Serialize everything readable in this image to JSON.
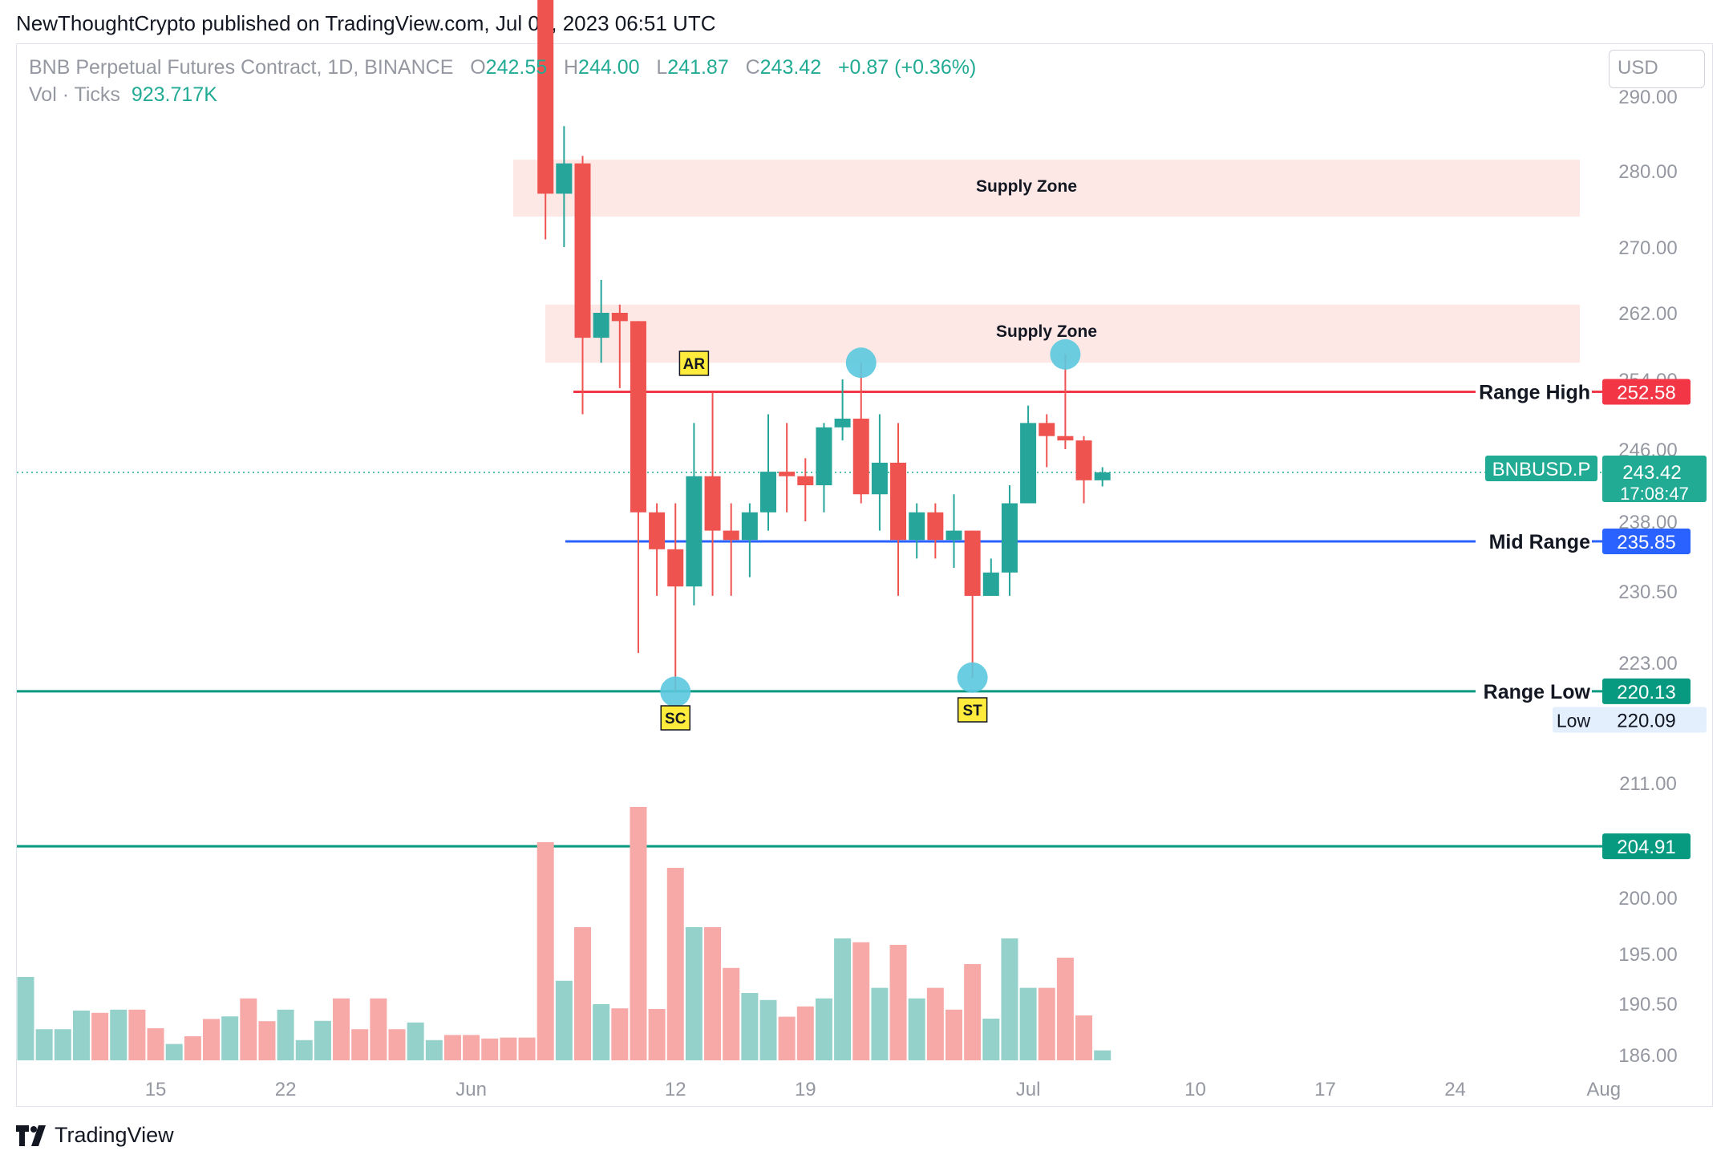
{
  "header": {
    "text": "NewThoughtCrypto published on TradingView.com, Jul 05, 2023 06:51 UTC"
  },
  "legend": {
    "symbol": "BNB Perpetual Futures Contract, 1D, BINANCE",
    "o_label": "O",
    "o_value": "242.55",
    "h_label": "H",
    "h_value": "244.00",
    "l_label": "L",
    "l_value": "241.87",
    "c_label": "C",
    "c_value": "243.42",
    "change": "+0.87 (+0.36%)",
    "vol_label": "Vol · Ticks",
    "vol_value": "923.717K"
  },
  "currency": "USD",
  "footer": {
    "brand": "TradingView"
  },
  "colors": {
    "up": "#26a69a",
    "down": "#ef5350",
    "range_high": "#f23645",
    "mid_range": "#2962ff",
    "range_low": "#089981",
    "zone": "#fde8e6",
    "marker": "#5bc8de",
    "label_bg": "#ffeb3b"
  },
  "chart_data": {
    "type": "candlestick",
    "symbol_tag": "BNBUSD.P",
    "last_price": "243.42",
    "countdown": "17:08:47",
    "y_axis": {
      "ticks": [
        "290.00",
        "280.00",
        "270.00",
        "262.00",
        "254.00",
        "246.00",
        "238.00",
        "230.50",
        "223.00",
        "211.00",
        "200.00",
        "195.00",
        "190.50",
        "186.00"
      ]
    },
    "x_axis": {
      "ticks": [
        "15",
        "22",
        "Jun",
        "12",
        "19",
        "Jul",
        "10",
        "17",
        "24",
        "Aug"
      ]
    },
    "candles": [
      {
        "date": "2023-06-05",
        "o": 308.0,
        "h": 312.0,
        "l": 271.0,
        "c": 277.0
      },
      {
        "date": "2023-06-06",
        "o": 277.0,
        "h": 286.0,
        "l": 270.0,
        "c": 281.0
      },
      {
        "date": "2023-06-07",
        "o": 281.0,
        "h": 282.0,
        "l": 250.0,
        "c": 259.0
      },
      {
        "date": "2023-06-08",
        "o": 259.0,
        "h": 266.0,
        "l": 256.0,
        "c": 262.0
      },
      {
        "date": "2023-06-09",
        "o": 262.0,
        "h": 263.0,
        "l": 253.0,
        "c": 261.0
      },
      {
        "date": "2023-06-10",
        "o": 261.0,
        "h": 261.0,
        "l": 224.0,
        "c": 239.0
      },
      {
        "date": "2023-06-11",
        "o": 239.0,
        "h": 240.0,
        "l": 230.0,
        "c": 235.0
      },
      {
        "date": "2023-06-12",
        "o": 235.0,
        "h": 240.0,
        "l": 220.09,
        "c": 231.0
      },
      {
        "date": "2023-06-13",
        "o": 231.0,
        "h": 249.0,
        "l": 229.0,
        "c": 243.0
      },
      {
        "date": "2023-06-14",
        "o": 243.0,
        "h": 252.5,
        "l": 230.0,
        "c": 237.0
      },
      {
        "date": "2023-06-15",
        "o": 237.0,
        "h": 240.0,
        "l": 230.0,
        "c": 236.0
      },
      {
        "date": "2023-06-16",
        "o": 236.0,
        "h": 240.0,
        "l": 232.0,
        "c": 239.0
      },
      {
        "date": "2023-06-17",
        "o": 239.0,
        "h": 250.0,
        "l": 237.0,
        "c": 243.5
      },
      {
        "date": "2023-06-18",
        "o": 243.5,
        "h": 249.0,
        "l": 239.0,
        "c": 243.0
      },
      {
        "date": "2023-06-19",
        "o": 243.0,
        "h": 245.0,
        "l": 238.0,
        "c": 242.0
      },
      {
        "date": "2023-06-20",
        "o": 242.0,
        "h": 249.0,
        "l": 239.0,
        "c": 248.5
      },
      {
        "date": "2023-06-21",
        "o": 248.5,
        "h": 254.0,
        "l": 247.0,
        "c": 249.5
      },
      {
        "date": "2023-06-22",
        "o": 249.5,
        "h": 256.0,
        "l": 240.0,
        "c": 241.0
      },
      {
        "date": "2023-06-23",
        "o": 241.0,
        "h": 250.0,
        "l": 237.0,
        "c": 244.5
      },
      {
        "date": "2023-06-24",
        "o": 244.5,
        "h": 249.0,
        "l": 230.0,
        "c": 236.0
      },
      {
        "date": "2023-06-25",
        "o": 236.0,
        "h": 240.0,
        "l": 234.0,
        "c": 239.0
      },
      {
        "date": "2023-06-26",
        "o": 239.0,
        "h": 240.0,
        "l": 234.0,
        "c": 236.0
      },
      {
        "date": "2023-06-27",
        "o": 236.0,
        "h": 241.0,
        "l": 233.0,
        "c": 237.0
      },
      {
        "date": "2023-06-28",
        "o": 237.0,
        "h": 237.0,
        "l": 221.5,
        "c": 230.0
      },
      {
        "date": "2023-06-29",
        "o": 230.0,
        "h": 234.0,
        "l": 230.0,
        "c": 232.5
      },
      {
        "date": "2023-06-30",
        "o": 232.5,
        "h": 242.0,
        "l": 230.0,
        "c": 240.0
      },
      {
        "date": "2023-07-01",
        "o": 240.0,
        "h": 251.0,
        "l": 240.0,
        "c": 249.0
      },
      {
        "date": "2023-07-02",
        "o": 249.0,
        "h": 250.0,
        "l": 244.0,
        "c": 247.5
      },
      {
        "date": "2023-07-03",
        "o": 247.5,
        "h": 257.0,
        "l": 246.0,
        "c": 247.0
      },
      {
        "date": "2023-07-04",
        "o": 247.0,
        "h": 247.5,
        "l": 240.0,
        "c": 242.55
      },
      {
        "date": "2023-07-05",
        "o": 242.55,
        "h": 244.0,
        "l": 241.87,
        "c": 243.42
      }
    ],
    "volume": [
      {
        "date": "2023-05-08",
        "v": 0.26,
        "dir": "up"
      },
      {
        "date": "2023-05-09",
        "v": 0.097,
        "dir": "up"
      },
      {
        "date": "2023-05-10",
        "v": 0.097,
        "dir": "up"
      },
      {
        "date": "2023-05-11",
        "v": 0.155,
        "dir": "up"
      },
      {
        "date": "2023-05-12",
        "v": 0.148,
        "dir": "down"
      },
      {
        "date": "2023-05-13",
        "v": 0.158,
        "dir": "up"
      },
      {
        "date": "2023-05-14",
        "v": 0.158,
        "dir": "down"
      },
      {
        "date": "2023-05-15",
        "v": 0.1,
        "dir": "down"
      },
      {
        "date": "2023-05-16",
        "v": 0.051,
        "dir": "up"
      },
      {
        "date": "2023-05-17",
        "v": 0.075,
        "dir": "down"
      },
      {
        "date": "2023-05-18",
        "v": 0.129,
        "dir": "down"
      },
      {
        "date": "2023-05-19",
        "v": 0.137,
        "dir": "up"
      },
      {
        "date": "2023-05-20",
        "v": 0.193,
        "dir": "down"
      },
      {
        "date": "2023-05-21",
        "v": 0.122,
        "dir": "down"
      },
      {
        "date": "2023-05-22",
        "v": 0.158,
        "dir": "up"
      },
      {
        "date": "2023-05-23",
        "v": 0.063,
        "dir": "up"
      },
      {
        "date": "2023-05-24",
        "v": 0.123,
        "dir": "up"
      },
      {
        "date": "2023-05-25",
        "v": 0.193,
        "dir": "down"
      },
      {
        "date": "2023-05-26",
        "v": 0.097,
        "dir": "down"
      },
      {
        "date": "2023-05-27",
        "v": 0.193,
        "dir": "down"
      },
      {
        "date": "2023-05-28",
        "v": 0.097,
        "dir": "down"
      },
      {
        "date": "2023-05-29",
        "v": 0.118,
        "dir": "up"
      },
      {
        "date": "2023-05-30",
        "v": 0.063,
        "dir": "up"
      },
      {
        "date": "2023-05-31",
        "v": 0.079,
        "dir": "down"
      },
      {
        "date": "2023-06-01",
        "v": 0.079,
        "dir": "down"
      },
      {
        "date": "2023-06-02",
        "v": 0.068,
        "dir": "down"
      },
      {
        "date": "2023-06-03",
        "v": 0.071,
        "dir": "down"
      },
      {
        "date": "2023-06-04",
        "v": 0.071,
        "dir": "down"
      },
      {
        "date": "2023-06-05",
        "v": 0.68,
        "dir": "down"
      },
      {
        "date": "2023-06-06",
        "v": 0.248,
        "dir": "up"
      },
      {
        "date": "2023-06-07",
        "v": 0.415,
        "dir": "down"
      },
      {
        "date": "2023-06-08",
        "v": 0.175,
        "dir": "up"
      },
      {
        "date": "2023-06-09",
        "v": 0.162,
        "dir": "down"
      },
      {
        "date": "2023-06-10",
        "v": 0.79,
        "dir": "down"
      },
      {
        "date": "2023-06-11",
        "v": 0.16,
        "dir": "down"
      },
      {
        "date": "2023-06-12",
        "v": 0.6,
        "dir": "down"
      },
      {
        "date": "2023-06-13",
        "v": 0.415,
        "dir": "up"
      },
      {
        "date": "2023-06-14",
        "v": 0.415,
        "dir": "down"
      },
      {
        "date": "2023-06-15",
        "v": 0.288,
        "dir": "down"
      },
      {
        "date": "2023-06-16",
        "v": 0.21,
        "dir": "up"
      },
      {
        "date": "2023-06-17",
        "v": 0.188,
        "dir": "up"
      },
      {
        "date": "2023-06-18",
        "v": 0.136,
        "dir": "down"
      },
      {
        "date": "2023-06-19",
        "v": 0.168,
        "dir": "down"
      },
      {
        "date": "2023-06-20",
        "v": 0.193,
        "dir": "up"
      },
      {
        "date": "2023-06-21",
        "v": 0.38,
        "dir": "up"
      },
      {
        "date": "2023-06-22",
        "v": 0.368,
        "dir": "down"
      },
      {
        "date": "2023-06-23",
        "v": 0.226,
        "dir": "up"
      },
      {
        "date": "2023-06-24",
        "v": 0.36,
        "dir": "down"
      },
      {
        "date": "2023-06-25",
        "v": 0.193,
        "dir": "up"
      },
      {
        "date": "2023-06-26",
        "v": 0.226,
        "dir": "down"
      },
      {
        "date": "2023-06-27",
        "v": 0.158,
        "dir": "down"
      },
      {
        "date": "2023-06-28",
        "v": 0.3,
        "dir": "down"
      },
      {
        "date": "2023-06-29",
        "v": 0.13,
        "dir": "up"
      },
      {
        "date": "2023-06-30",
        "v": 0.38,
        "dir": "up"
      },
      {
        "date": "2023-07-01",
        "v": 0.226,
        "dir": "up"
      },
      {
        "date": "2023-07-02",
        "v": 0.226,
        "dir": "down"
      },
      {
        "date": "2023-07-03",
        "v": 0.32,
        "dir": "down"
      },
      {
        "date": "2023-07-04",
        "v": 0.14,
        "dir": "down"
      },
      {
        "date": "2023-07-05",
        "v": 0.031,
        "dir": "up"
      }
    ],
    "zones": [
      {
        "label": "Supply Zone",
        "from": 274.0,
        "to": 281.5
      },
      {
        "label": "Supply Zone",
        "from": 256.0,
        "to": 263.0
      }
    ],
    "levels": [
      {
        "label": "Range High",
        "value": "252.58"
      },
      {
        "label": "Mid Range",
        "value": "235.85"
      },
      {
        "label": "Range Low",
        "value": "220.13"
      },
      {
        "label": "",
        "value": "204.91"
      }
    ],
    "low_marker": {
      "label": "Low",
      "value": "220.09"
    },
    "annotations": [
      {
        "text": "AR",
        "date": "2023-06-13"
      },
      {
        "text": "SC",
        "date": "2023-06-12"
      },
      {
        "text": "ST",
        "date": "2023-06-28"
      }
    ],
    "markers": [
      {
        "date": "2023-06-12",
        "price": 220.09
      },
      {
        "date": "2023-06-22",
        "price": 256.0
      },
      {
        "date": "2023-06-28",
        "price": 221.5
      },
      {
        "date": "2023-07-03",
        "price": 257.0
      }
    ]
  }
}
